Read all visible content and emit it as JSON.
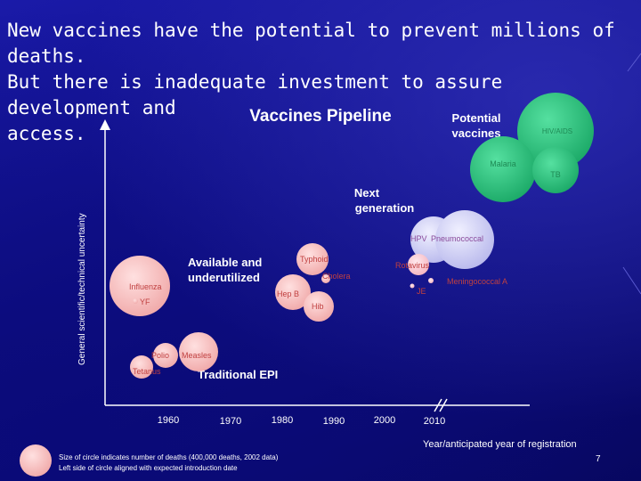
{
  "slide": {
    "heading_lines": [
      "New vaccines have the potential to prevent millions of deaths.",
      "But there is inadequate investment to assure development and",
      "access."
    ],
    "page_number": "7",
    "footer_lines": [
      "Size of circle indicates number of deaths (400,000 deaths, 2002 data)",
      "Left side of circle aligned with expected introduction date"
    ],
    "colors": {
      "background": "#10108a",
      "green": "#22c47a",
      "pink": "#f5b8b8",
      "lavender": "#c8c8f0",
      "light_pink": "#f8c0c8"
    }
  },
  "chart_data": {
    "type": "scatter",
    "title": "Vaccines Pipeline",
    "xlabel": "Year/anticipated year of registration",
    "ylabel": "General scientific/technical uncertainty",
    "x_ticks": [
      "1960",
      "1970",
      "1980",
      "1990",
      "2000",
      "2010"
    ],
    "group_labels": [
      {
        "key": "potential",
        "lines": [
          "Potential",
          "vaccines"
        ]
      },
      {
        "key": "next",
        "lines": [
          "Next",
          "generation"
        ]
      },
      {
        "key": "available",
        "lines": [
          "Available and",
          "underutilized"
        ]
      },
      {
        "key": "epi",
        "lines": [
          "Traditional EPI"
        ]
      }
    ],
    "bubbles": [
      {
        "name": "HIV/AIDS",
        "group": "potential",
        "color": "green"
      },
      {
        "name": "Malaria",
        "group": "potential",
        "color": "green"
      },
      {
        "name": "TB",
        "group": "potential",
        "color": "green"
      },
      {
        "name": "HPV",
        "group": "next",
        "color": "lavender"
      },
      {
        "name": "Pneumococcal",
        "group": "next",
        "color": "lavender"
      },
      {
        "name": "Rotavirus",
        "group": "next",
        "color": "light_pink"
      },
      {
        "name": "Meningococcal A",
        "group": "next",
        "color": "light_pink"
      },
      {
        "name": "JE",
        "group": "next",
        "color": "light_pink"
      },
      {
        "name": "Typhoid",
        "group": "available",
        "color": "pink"
      },
      {
        "name": "Cholera",
        "group": "available",
        "color": "pink"
      },
      {
        "name": "Hep B",
        "group": "available",
        "color": "pink"
      },
      {
        "name": "Hib",
        "group": "available",
        "color": "pink"
      },
      {
        "name": "Influenza",
        "group": "available",
        "color": "pink"
      },
      {
        "name": "YF",
        "group": "available",
        "color": "pink"
      },
      {
        "name": "Polio",
        "group": "epi",
        "color": "pink"
      },
      {
        "name": "Measles",
        "group": "epi",
        "color": "pink"
      },
      {
        "name": "Tetanus",
        "group": "epi",
        "color": "pink"
      }
    ]
  }
}
